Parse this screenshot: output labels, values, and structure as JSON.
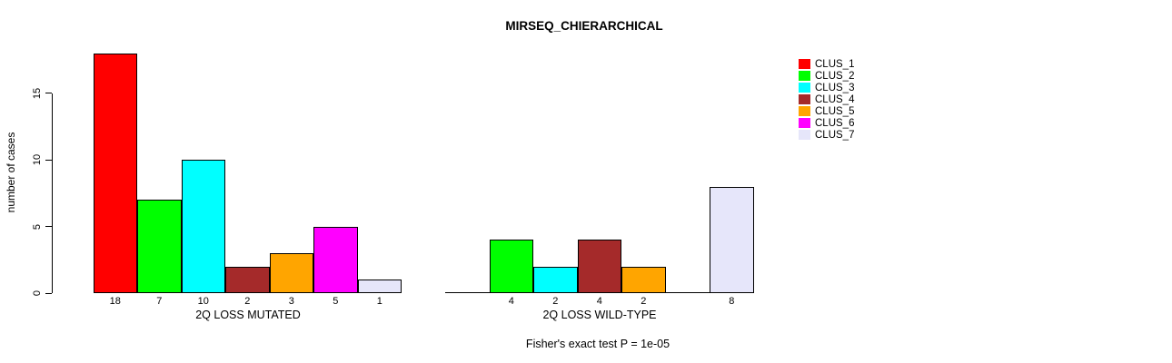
{
  "chart_data": {
    "type": "bar",
    "title": "MIRSEQ_CHIERARCHICAL",
    "ylabel": "number of cases",
    "xlabel": "",
    "categories": [
      "2Q LOSS MUTATED",
      "2Q LOSS WILD-TYPE"
    ],
    "series": [
      {
        "name": "CLUS_1",
        "color": "#FF0000",
        "values": [
          18,
          0
        ]
      },
      {
        "name": "CLUS_2",
        "color": "#00FF00",
        "values": [
          7,
          4
        ]
      },
      {
        "name": "CLUS_3",
        "color": "#00FFFF",
        "values": [
          10,
          2
        ]
      },
      {
        "name": "CLUS_4",
        "color": "#A52A2A",
        "values": [
          2,
          4
        ]
      },
      {
        "name": "CLUS_5",
        "color": "#FFA500",
        "values": [
          3,
          2
        ]
      },
      {
        "name": "CLUS_6",
        "color": "#FF00FF",
        "values": [
          5,
          0
        ]
      },
      {
        "name": "CLUS_7",
        "color": "#E6E6FA",
        "values": [
          1,
          8
        ]
      }
    ],
    "yticks": [
      0,
      5,
      10,
      15
    ],
    "ylim": [
      0,
      18
    ],
    "grid": false,
    "legend_position": "right",
    "bar_border_color": "#000000",
    "zero_bars_drawn_as_lines": true,
    "value_labels": {
      "group1": [
        "18",
        "7",
        "10",
        "2",
        "3",
        "5",
        "1"
      ],
      "group2": [
        "",
        "4",
        "2",
        "4",
        "2",
        "",
        "8"
      ]
    },
    "annotation": "Fisher's exact test P = 1e-05"
  }
}
